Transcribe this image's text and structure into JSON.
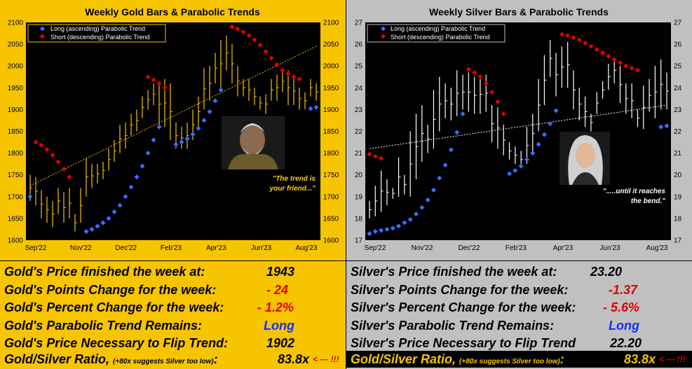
{
  "colors": {
    "gold_bg": "#f7c400",
    "silver_bg": "#c0c0c0",
    "long": "#3a6cff",
    "short": "#e00000",
    "gold_bar": "#f7c400",
    "silver_bar": "#ffffff"
  },
  "chart_data": [
    {
      "type": "bar",
      "title": "Weekly Gold Bars & Parabolic Trends",
      "x_ticks": [
        "Sep'22",
        "Nov'22",
        "Dec'22",
        "Feb'23",
        "Apr'23",
        "Jun'23",
        "Aug'23"
      ],
      "y_ticks": [
        "2100",
        "2050",
        "2000",
        "1950",
        "1900",
        "1850",
        "1800",
        "1750",
        "1700",
        "1650",
        "1600"
      ],
      "ylim": [
        1600,
        2100
      ],
      "legend": [
        "Long (ascending) Parabolic Trend",
        "Short (descending) Parabolic Trend"
      ],
      "annotation": "\"The trend is your friend...\"",
      "annotation_lines": [
        "\"The trend is",
        "your friend...\""
      ],
      "weeks": 52,
      "bars": [
        [
          1690,
          1750
        ],
        [
          1680,
          1745
        ],
        [
          1650,
          1715
        ],
        [
          1640,
          1700
        ],
        [
          1630,
          1690
        ],
        [
          1660,
          1720
        ],
        [
          1640,
          1710
        ],
        [
          1650,
          1720
        ],
        [
          1620,
          1660
        ],
        [
          1640,
          1720
        ],
        [
          1700,
          1790
        ],
        [
          1720,
          1775
        ],
        [
          1730,
          1775
        ],
        [
          1740,
          1780
        ],
        [
          1760,
          1810
        ],
        [
          1780,
          1830
        ],
        [
          1800,
          1865
        ],
        [
          1810,
          1870
        ],
        [
          1840,
          1890
        ],
        [
          1850,
          1900
        ],
        [
          1880,
          1930
        ],
        [
          1900,
          1945
        ],
        [
          1910,
          1960
        ],
        [
          1860,
          1965
        ],
        [
          1860,
          1970
        ],
        [
          1830,
          1960
        ],
        [
          1810,
          1870
        ],
        [
          1810,
          1860
        ],
        [
          1810,
          1870
        ],
        [
          1830,
          1900
        ],
        [
          1860,
          1930
        ],
        [
          1900,
          1995
        ],
        [
          1920,
          2000
        ],
        [
          1960,
          2030
        ],
        [
          1950,
          2060
        ],
        [
          1990,
          2070
        ],
        [
          1960,
          2050
        ],
        [
          1930,
          2000
        ],
        [
          1930,
          1970
        ],
        [
          1920,
          1970
        ],
        [
          1910,
          1950
        ],
        [
          1900,
          1930
        ],
        [
          1890,
          1935
        ],
        [
          1920,
          1970
        ],
        [
          1920,
          1980
        ],
        [
          1940,
          1990
        ],
        [
          1910,
          1990
        ],
        [
          1910,
          1975
        ],
        [
          1900,
          1950
        ],
        [
          1900,
          1940
        ],
        [
          1930,
          1970
        ],
        [
          1920,
          1960
        ]
      ],
      "long_points": [
        [
          0,
          1700
        ],
        [
          10,
          1620
        ],
        [
          11,
          1625
        ],
        [
          12,
          1632
        ],
        [
          13,
          1640
        ],
        [
          14,
          1650
        ],
        [
          15,
          1665
        ],
        [
          16,
          1680
        ],
        [
          17,
          1700
        ],
        [
          18,
          1722
        ],
        [
          19,
          1745
        ],
        [
          20,
          1770
        ],
        [
          21,
          1800
        ],
        [
          22,
          1830
        ],
        [
          23,
          1860
        ],
        [
          26,
          1820
        ],
        [
          27,
          1825
        ],
        [
          28,
          1833
        ],
        [
          29,
          1843
        ],
        [
          30,
          1857
        ],
        [
          31,
          1875
        ],
        [
          32,
          1895
        ],
        [
          33,
          1920
        ],
        [
          34,
          1945
        ],
        [
          50,
          1902
        ],
        [
          51,
          1905
        ]
      ],
      "short_points": [
        [
          1,
          1825
        ],
        [
          2,
          1818
        ],
        [
          3,
          1808
        ],
        [
          4,
          1795
        ],
        [
          5,
          1780
        ],
        [
          6,
          1763
        ],
        [
          7,
          1745
        ],
        [
          21,
          1975
        ],
        [
          22,
          1968
        ],
        [
          23,
          1960
        ],
        [
          24,
          1950
        ],
        [
          36,
          2090
        ],
        [
          37,
          2085
        ],
        [
          38,
          2078
        ],
        [
          39,
          2070
        ],
        [
          40,
          2060
        ],
        [
          41,
          2048
        ],
        [
          42,
          2033
        ],
        [
          43,
          2018
        ],
        [
          44,
          2003
        ],
        [
          45,
          1990
        ],
        [
          46,
          1982
        ],
        [
          47,
          1975
        ],
        [
          48,
          1970
        ]
      ],
      "trendline": [
        [
          0,
          1725
        ],
        [
          51,
          2045
        ]
      ]
    },
    {
      "type": "bar",
      "title": "Weekly Silver Bars & Parabolic Trends",
      "x_ticks": [
        "Sep'22",
        "Nov'22",
        "Dec'22",
        "Feb'23",
        "Apr'23",
        "Jun'23",
        "Aug'23"
      ],
      "y_ticks": [
        "27",
        "26",
        "25",
        "24",
        "23",
        "22",
        "21",
        "20",
        "19",
        "18",
        "17"
      ],
      "ylim": [
        17,
        27
      ],
      "legend": [
        "Long (ascending) Parabolic Trend",
        "Short (descending) Parabolic Trend"
      ],
      "annotation": "\".....until it reaches the bend.\"",
      "annotation_lines": [
        "\".....until it reaches",
        "the bend.\""
      ],
      "weeks": 52,
      "bars": [
        [
          18.0,
          18.8
        ],
        [
          18.1,
          19.5
        ],
        [
          18.3,
          20.2
        ],
        [
          18.6,
          19.8
        ],
        [
          18.9,
          19.4
        ],
        [
          19.0,
          20.8
        ],
        [
          19.1,
          20.0
        ],
        [
          19.0,
          22.0
        ],
        [
          19.8,
          22.8
        ],
        [
          20.6,
          23.2
        ],
        [
          21.0,
          22.3
        ],
        [
          21.2,
          23.9
        ],
        [
          22.0,
          24.5
        ],
        [
          22.6,
          24.2
        ],
        [
          22.5,
          24.0
        ],
        [
          22.7,
          24.8
        ],
        [
          23.0,
          24.6
        ],
        [
          22.9,
          24.7
        ],
        [
          22.8,
          24.5
        ],
        [
          22.8,
          24.6
        ],
        [
          22.9,
          24.6
        ],
        [
          21.5,
          23.2
        ],
        [
          21.2,
          23.1
        ],
        [
          20.9,
          22.3
        ],
        [
          20.7,
          21.5
        ],
        [
          20.5,
          21.3
        ],
        [
          20.3,
          21.1
        ],
        [
          20.5,
          22.2
        ],
        [
          21.0,
          22.8
        ],
        [
          22.0,
          24.4
        ],
        [
          23.2,
          25.5
        ],
        [
          24.5,
          26.2
        ],
        [
          23.6,
          25.6
        ],
        [
          24.0,
          25.9
        ],
        [
          24.0,
          26.1
        ],
        [
          23.0,
          24.8
        ],
        [
          22.5,
          24.0
        ],
        [
          22.2,
          23.6
        ],
        [
          22.0,
          22.8
        ],
        [
          22.8,
          23.8
        ],
        [
          23.5,
          24.3
        ],
        [
          23.9,
          25.1
        ],
        [
          24.2,
          25.4
        ],
        [
          23.3,
          25.0
        ],
        [
          22.8,
          24.2
        ],
        [
          22.6,
          24.2
        ],
        [
          22.2,
          23.0
        ],
        [
          22.1,
          24.1
        ],
        [
          22.9,
          24.4
        ],
        [
          22.6,
          25.0
        ],
        [
          23.0,
          25.3
        ],
        [
          23.0,
          24.7
        ]
      ],
      "long_points": [
        [
          0,
          17.3
        ],
        [
          1,
          17.4
        ],
        [
          2,
          17.45
        ],
        [
          3,
          17.5
        ],
        [
          4,
          17.55
        ],
        [
          5,
          17.65
        ],
        [
          6,
          17.8
        ],
        [
          7,
          17.95
        ],
        [
          8,
          18.2
        ],
        [
          9,
          18.5
        ],
        [
          10,
          18.85
        ],
        [
          11,
          19.3
        ],
        [
          12,
          19.85
        ],
        [
          13,
          20.45
        ],
        [
          14,
          21.15
        ],
        [
          15,
          21.95
        ],
        [
          16,
          22.8
        ],
        [
          24,
          20.05
        ],
        [
          25,
          20.2
        ],
        [
          26,
          20.4
        ],
        [
          27,
          20.7
        ],
        [
          28,
          21.0
        ],
        [
          29,
          21.4
        ],
        [
          30,
          21.85
        ],
        [
          31,
          22.35
        ],
        [
          32,
          22.95
        ],
        [
          50,
          22.2
        ],
        [
          51,
          22.25
        ]
      ],
      "short_points": [
        [
          0,
          20.95
        ],
        [
          1,
          20.85
        ],
        [
          2,
          20.75
        ],
        [
          17,
          24.85
        ],
        [
          18,
          24.7
        ],
        [
          19,
          24.5
        ],
        [
          20,
          24.2
        ],
        [
          21,
          23.8
        ],
        [
          22,
          23.35
        ],
        [
          23,
          22.8
        ],
        [
          33,
          26.45
        ],
        [
          34,
          26.4
        ],
        [
          35,
          26.3
        ],
        [
          36,
          26.2
        ],
        [
          37,
          26.05
        ],
        [
          38,
          25.9
        ],
        [
          39,
          25.75
        ],
        [
          40,
          25.6
        ],
        [
          41,
          25.45
        ],
        [
          42,
          25.3
        ],
        [
          43,
          25.15
        ],
        [
          44,
          25.0
        ],
        [
          45,
          24.9
        ],
        [
          46,
          24.8
        ]
      ],
      "trendline": [
        [
          0,
          21.2
        ],
        [
          51,
          23.2
        ]
      ]
    }
  ],
  "gold_table": {
    "rows": [
      {
        "label": "Gold's Price finished the week at:",
        "value": "1943",
        "color": "#000000"
      },
      {
        "label": "Gold's Points Change for the week:",
        "value": "- 24",
        "color": "#e00000"
      },
      {
        "label": "Gold's Percent Change for the week:",
        "value": "- 1.2%",
        "color": "#e00000"
      },
      {
        "label": "Gold's Parabolic Trend Remains:",
        "value": "Long",
        "color": "#1030ff"
      },
      {
        "label": "Gold's Price Necessary to Flip Trend:",
        "value": "1902",
        "color": "#000000"
      }
    ],
    "ratio_label": "Gold/Silver Ratio,",
    "ratio_note": "(+80x suggests Silver too low)",
    "ratio_colon": ":",
    "ratio_value": "83.8x",
    "ratio_arrow": "< --- !!!"
  },
  "silver_table": {
    "rows": [
      {
        "label": "Silver's Price finished the week at:",
        "value": "23.20",
        "color": "#000000"
      },
      {
        "label": "Silver's Points Change for the week:",
        "value": "-1.37",
        "color": "#e00000"
      },
      {
        "label": "Silver's Percent Change for the week:",
        "value": "- 5.6%",
        "color": "#e00000"
      },
      {
        "label": "Silver's Parabolic Trend Remains:",
        "value": "Long",
        "color": "#1030ff"
      },
      {
        "label": "Silver's Price Necessary to Flip Trend",
        "value": "22.20",
        "color": "#000000"
      }
    ],
    "ratio_label": "Gold/Silver Ratio,",
    "ratio_note": "(+80x suggests Silver too low)",
    "ratio_colon": ":",
    "ratio_value": "83.8x",
    "ratio_arrow": "< --- !!!"
  }
}
